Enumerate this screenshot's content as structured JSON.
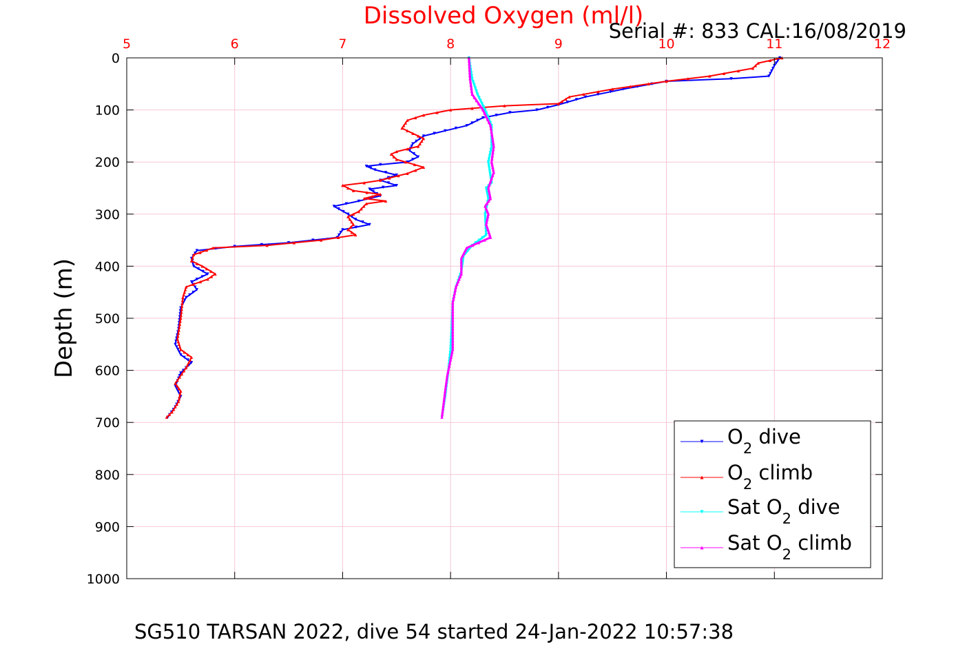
{
  "chart_data": {
    "type": "line",
    "title": "Dissolved Oxygen (ml/l)",
    "subtitle": "Serial #: 833  CAL:16/08/2019",
    "xlabel": "",
    "ylabel": "Depth (m)",
    "footer": "SG510 TARSAN 2022, dive 54 started 24-Jan-2022 10:57:38",
    "xlim": [
      5,
      12
    ],
    "ylim": [
      0,
      1000
    ],
    "y_reversed": true,
    "x_axis_position": "top",
    "x_ticks": [
      "5",
      "6",
      "7",
      "8",
      "9",
      "10",
      "11",
      "12"
    ],
    "y_ticks": [
      "0",
      "100",
      "200",
      "300",
      "400",
      "500",
      "600",
      "700",
      "800",
      "900",
      "1000"
    ],
    "grid": true,
    "legend_position": "bottom-right",
    "colors": {
      "title": "#ff0000",
      "x_ticks": "#ff0000",
      "grid": "#f5c6d6",
      "axis": "#000000"
    },
    "series": [
      {
        "name": "O₂ dive",
        "legend_main": "O",
        "legend_sub": "2",
        "legend_tail": " dive",
        "color": "#0000ff",
        "marker": "triangle-down",
        "points": [
          [
            11.05,
            0
          ],
          [
            11.0,
            15
          ],
          [
            10.95,
            35
          ],
          [
            10.6,
            40
          ],
          [
            10.0,
            45
          ],
          [
            9.6,
            60
          ],
          [
            9.25,
            75
          ],
          [
            9.0,
            90
          ],
          [
            8.8,
            100
          ],
          [
            8.55,
            105
          ],
          [
            8.3,
            115
          ],
          [
            8.15,
            130
          ],
          [
            7.95,
            140
          ],
          [
            7.75,
            150
          ],
          [
            7.65,
            165
          ],
          [
            7.62,
            178
          ],
          [
            7.7,
            190
          ],
          [
            7.6,
            200
          ],
          [
            7.35,
            205
          ],
          [
            7.22,
            208
          ],
          [
            7.3,
            215
          ],
          [
            7.5,
            225
          ],
          [
            7.35,
            235
          ],
          [
            7.5,
            245
          ],
          [
            7.25,
            252
          ],
          [
            7.35,
            265
          ],
          [
            7.15,
            275
          ],
          [
            6.92,
            285
          ],
          [
            7.05,
            300
          ],
          [
            7.12,
            310
          ],
          [
            7.25,
            320
          ],
          [
            7.0,
            330
          ],
          [
            6.95,
            345
          ],
          [
            6.5,
            355
          ],
          [
            6.0,
            362
          ],
          [
            5.65,
            370
          ],
          [
            5.6,
            385
          ],
          [
            5.62,
            400
          ],
          [
            5.75,
            415
          ],
          [
            5.6,
            430
          ],
          [
            5.65,
            445
          ],
          [
            5.55,
            460
          ],
          [
            5.5,
            480
          ],
          [
            5.48,
            520
          ],
          [
            5.45,
            550
          ],
          [
            5.5,
            570
          ],
          [
            5.6,
            585
          ],
          [
            5.5,
            605
          ],
          [
            5.45,
            630
          ],
          [
            5.5,
            650
          ],
          [
            5.45,
            670
          ],
          [
            5.38,
            690
          ]
        ]
      },
      {
        "name": "O₂ climb",
        "legend_main": "O",
        "legend_sub": "2",
        "legend_tail": " climb",
        "color": "#ff0000",
        "marker": "triangle-up",
        "points": [
          [
            11.07,
            0
          ],
          [
            10.85,
            10
          ],
          [
            10.8,
            20
          ],
          [
            10.4,
            35
          ],
          [
            10.0,
            45
          ],
          [
            9.5,
            60
          ],
          [
            9.1,
            75
          ],
          [
            9.0,
            88
          ],
          [
            8.5,
            92
          ],
          [
            8.2,
            97
          ],
          [
            8.0,
            100
          ],
          [
            7.75,
            110
          ],
          [
            7.6,
            120
          ],
          [
            7.55,
            135
          ],
          [
            7.75,
            155
          ],
          [
            7.7,
            170
          ],
          [
            7.5,
            180
          ],
          [
            7.45,
            185
          ],
          [
            7.5,
            195
          ],
          [
            7.75,
            210
          ],
          [
            7.6,
            222
          ],
          [
            7.35,
            235
          ],
          [
            7.2,
            240
          ],
          [
            7.0,
            245
          ],
          [
            7.1,
            255
          ],
          [
            7.35,
            262
          ],
          [
            7.2,
            270
          ],
          [
            7.4,
            275
          ],
          [
            7.22,
            280
          ],
          [
            7.15,
            295
          ],
          [
            7.05,
            305
          ],
          [
            7.1,
            320
          ],
          [
            7.05,
            330
          ],
          [
            7.12,
            340
          ],
          [
            6.8,
            350
          ],
          [
            6.3,
            360
          ],
          [
            5.8,
            365
          ],
          [
            5.62,
            378
          ],
          [
            5.6,
            390
          ],
          [
            5.7,
            400
          ],
          [
            5.82,
            415
          ],
          [
            5.75,
            425
          ],
          [
            5.55,
            440
          ],
          [
            5.52,
            460
          ],
          [
            5.5,
            500
          ],
          [
            5.47,
            540
          ],
          [
            5.5,
            560
          ],
          [
            5.6,
            575
          ],
          [
            5.55,
            595
          ],
          [
            5.45,
            625
          ],
          [
            5.5,
            640
          ],
          [
            5.48,
            660
          ],
          [
            5.42,
            680
          ],
          [
            5.37,
            690
          ]
        ]
      },
      {
        "name": "Sat O₂ dive",
        "legend_main": "Sat O",
        "legend_sub": "2",
        "legend_tail": " dive",
        "color": "#00ffff",
        "marker": "triangle-down",
        "points": [
          [
            8.17,
            0
          ],
          [
            8.2,
            40
          ],
          [
            8.25,
            70
          ],
          [
            8.32,
            100
          ],
          [
            8.38,
            130
          ],
          [
            8.38,
            170
          ],
          [
            8.35,
            200
          ],
          [
            8.38,
            240
          ],
          [
            8.33,
            250
          ],
          [
            8.35,
            270
          ],
          [
            8.32,
            300
          ],
          [
            8.33,
            340
          ],
          [
            8.2,
            360
          ],
          [
            8.12,
            380
          ],
          [
            8.1,
            410
          ],
          [
            8.05,
            440
          ],
          [
            8.02,
            470
          ],
          [
            8.01,
            520
          ],
          [
            8.0,
            560
          ],
          [
            7.98,
            600
          ],
          [
            7.95,
            650
          ],
          [
            7.92,
            690
          ]
        ]
      },
      {
        "name": "Sat O₂ climb",
        "legend_main": "Sat O",
        "legend_sub": "2",
        "legend_tail": " climb",
        "color": "#ff00ff",
        "marker": "triangle-up",
        "points": [
          [
            8.17,
            0
          ],
          [
            8.18,
            40
          ],
          [
            8.2,
            70
          ],
          [
            8.3,
            100
          ],
          [
            8.37,
            130
          ],
          [
            8.4,
            170
          ],
          [
            8.38,
            200
          ],
          [
            8.4,
            220
          ],
          [
            8.35,
            250
          ],
          [
            8.37,
            270
          ],
          [
            8.32,
            285
          ],
          [
            8.35,
            300
          ],
          [
            8.33,
            320
          ],
          [
            8.37,
            345
          ],
          [
            8.15,
            365
          ],
          [
            8.1,
            385
          ],
          [
            8.1,
            415
          ],
          [
            8.05,
            440
          ],
          [
            8.02,
            470
          ],
          [
            8.02,
            520
          ],
          [
            8.02,
            560
          ],
          [
            8.0,
            580
          ],
          [
            7.97,
            610
          ],
          [
            7.95,
            640
          ],
          [
            7.92,
            690
          ]
        ]
      }
    ]
  }
}
